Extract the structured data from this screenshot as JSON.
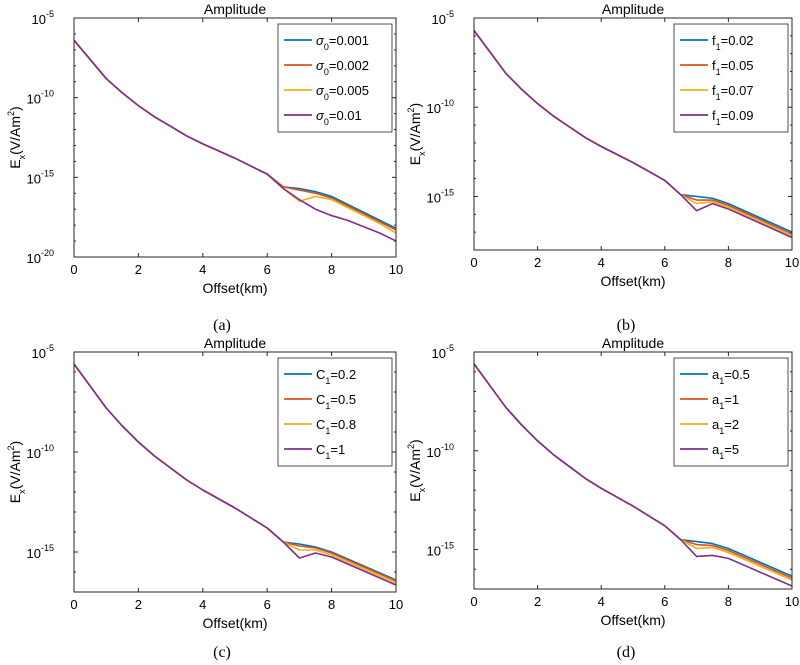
{
  "chart_data": [
    {
      "type": "line",
      "title": "Amplitude",
      "xlabel": "Offset(km)",
      "ylabel": {
        "base": "E",
        "sub": "x",
        "unit": "(V/Am",
        "unit_sup": "2",
        "unit_close": ")"
      },
      "yscale": "log",
      "xlim": [
        0,
        10
      ],
      "ylim_exp": [
        -20,
        -5
      ],
      "x_ticks": [
        0,
        2,
        4,
        6,
        8,
        10
      ],
      "y_ticks": [
        {
          "base": "10",
          "exp": "-20",
          "value": -20
        },
        {
          "base": "10",
          "exp": "-15",
          "value": -15
        },
        {
          "base": "10",
          "exp": "-10",
          "value": -10
        },
        {
          "base": "10",
          "exp": "-5",
          "value": -5
        }
      ],
      "caption": "(a)",
      "legend": {
        "position": "top-right"
      },
      "x": [
        0,
        0.5,
        1,
        1.5,
        2,
        2.5,
        3,
        3.5,
        4,
        4.5,
        5,
        5.5,
        6,
        6.5,
        7,
        7.5,
        8,
        8.5,
        9,
        9.5,
        10
      ],
      "series": [
        {
          "name": {
            "sym": "σ",
            "sub": "0",
            "val": "=0.001"
          },
          "color": "#0072BD",
          "values": [
            -6.4,
            -7.6,
            -8.8,
            -9.7,
            -10.5,
            -11.2,
            -11.8,
            -12.4,
            -12.9,
            -13.35,
            -13.8,
            -14.3,
            -14.8,
            -15.6,
            -15.7,
            -15.9,
            -16.2,
            -16.7,
            -17.2,
            -17.7,
            -18.2
          ]
        },
        {
          "name": {
            "sym": "σ",
            "sub": "0",
            "val": "=0.002"
          },
          "color": "#D95319",
          "values": [
            -6.4,
            -7.6,
            -8.8,
            -9.7,
            -10.5,
            -11.2,
            -11.8,
            -12.4,
            -12.9,
            -13.35,
            -13.8,
            -14.3,
            -14.8,
            -15.6,
            -15.8,
            -16.0,
            -16.3,
            -16.8,
            -17.3,
            -17.8,
            -18.3
          ]
        },
        {
          "name": {
            "sym": "σ",
            "sub": "0",
            "val": "=0.005"
          },
          "color": "#EDB120",
          "values": [
            -6.4,
            -7.6,
            -8.8,
            -9.7,
            -10.5,
            -11.2,
            -11.8,
            -12.4,
            -12.9,
            -13.35,
            -13.8,
            -14.3,
            -14.8,
            -15.7,
            -16.5,
            -16.2,
            -16.4,
            -16.9,
            -17.4,
            -17.9,
            -18.5
          ]
        },
        {
          "name": {
            "sym": "σ",
            "sub": "0",
            "val": "=0.01"
          },
          "color": "#7E2F8E",
          "values": [
            -6.4,
            -7.6,
            -8.8,
            -9.7,
            -10.5,
            -11.2,
            -11.8,
            -12.4,
            -12.9,
            -13.35,
            -13.8,
            -14.3,
            -14.8,
            -15.7,
            -16.4,
            -17.0,
            -17.4,
            -17.7,
            -18.1,
            -18.5,
            -19.0
          ]
        }
      ]
    },
    {
      "type": "line",
      "title": "Amplitude",
      "xlabel": "Offset(km)",
      "ylabel": {
        "base": "E",
        "sub": "x",
        "unit": "(V/Am",
        "unit_sup": "2",
        "unit_close": ")"
      },
      "yscale": "log",
      "xlim": [
        0,
        10
      ],
      "ylim_exp": [
        -18,
        -5
      ],
      "x_ticks": [
        0,
        2,
        4,
        6,
        8,
        10
      ],
      "y_ticks": [
        {
          "base": "10",
          "exp": "-15",
          "value": -15
        },
        {
          "base": "10",
          "exp": "-10",
          "value": -10
        },
        {
          "base": "10",
          "exp": "-5",
          "value": -5
        }
      ],
      "caption": "(b)",
      "legend": {
        "position": "top-right"
      },
      "x": [
        0,
        0.5,
        1,
        1.5,
        2,
        2.5,
        3,
        3.5,
        4,
        4.5,
        5,
        5.5,
        6,
        6.5,
        7,
        7.5,
        8,
        8.5,
        9,
        9.5,
        10
      ],
      "series": [
        {
          "name": {
            "sym": "f",
            "sub": "1",
            "val": "=0.02"
          },
          "color": "#0072BD",
          "values": [
            -5.7,
            -6.9,
            -8.1,
            -9.0,
            -9.8,
            -10.5,
            -11.1,
            -11.7,
            -12.2,
            -12.65,
            -13.1,
            -13.6,
            -14.1,
            -14.9,
            -15.0,
            -15.1,
            -15.4,
            -15.8,
            -16.2,
            -16.6,
            -17.0
          ]
        },
        {
          "name": {
            "sym": "f",
            "sub": "1",
            "val": "=0.05"
          },
          "color": "#D95319",
          "values": [
            -5.7,
            -6.9,
            -8.1,
            -9.0,
            -9.8,
            -10.5,
            -11.1,
            -11.7,
            -12.2,
            -12.65,
            -13.1,
            -13.6,
            -14.1,
            -14.9,
            -15.2,
            -15.2,
            -15.5,
            -15.9,
            -16.3,
            -16.7,
            -17.1
          ]
        },
        {
          "name": {
            "sym": "f",
            "sub": "1",
            "val": "=0.07"
          },
          "color": "#EDB120",
          "values": [
            -5.7,
            -6.9,
            -8.1,
            -9.0,
            -9.8,
            -10.5,
            -11.1,
            -11.7,
            -12.2,
            -12.65,
            -13.1,
            -13.6,
            -14.1,
            -14.9,
            -15.4,
            -15.3,
            -15.6,
            -16.0,
            -16.4,
            -16.8,
            -17.2
          ]
        },
        {
          "name": {
            "sym": "f",
            "sub": "1",
            "val": "=0.09"
          },
          "color": "#7E2F8E",
          "values": [
            -5.7,
            -6.9,
            -8.1,
            -9.0,
            -9.8,
            -10.5,
            -11.1,
            -11.7,
            -12.2,
            -12.65,
            -13.1,
            -13.6,
            -14.1,
            -14.9,
            -15.8,
            -15.4,
            -15.7,
            -16.1,
            -16.5,
            -16.9,
            -17.3
          ]
        }
      ]
    },
    {
      "type": "line",
      "title": "Amplitude",
      "xlabel": "Offset(km)",
      "ylabel": {
        "base": "E",
        "sub": "x",
        "unit": "(V/Am",
        "unit_sup": "2",
        "unit_close": ")"
      },
      "yscale": "log",
      "xlim": [
        0,
        10
      ],
      "ylim_exp": [
        -17,
        -5
      ],
      "x_ticks": [
        0,
        2,
        4,
        6,
        8,
        10
      ],
      "y_ticks": [
        {
          "base": "10",
          "exp": "-15",
          "value": -15
        },
        {
          "base": "10",
          "exp": "-10",
          "value": -10
        },
        {
          "base": "10",
          "exp": "-5",
          "value": -5
        }
      ],
      "caption": "(c)",
      "legend": {
        "position": "top-right"
      },
      "x": [
        0,
        0.5,
        1,
        1.5,
        2,
        2.5,
        3,
        3.5,
        4,
        4.5,
        5,
        5.5,
        6,
        6.5,
        7,
        7.5,
        8,
        8.5,
        9,
        9.5,
        10
      ],
      "series": [
        {
          "name": {
            "sym": "C",
            "sub": "1",
            "val": "=0.2"
          },
          "color": "#0072BD",
          "values": [
            -5.6,
            -6.7,
            -7.8,
            -8.7,
            -9.5,
            -10.2,
            -10.8,
            -11.4,
            -11.9,
            -12.35,
            -12.8,
            -13.3,
            -13.8,
            -14.5,
            -14.6,
            -14.75,
            -15.0,
            -15.35,
            -15.7,
            -16.05,
            -16.4
          ]
        },
        {
          "name": {
            "sym": "C",
            "sub": "1",
            "val": "=0.5"
          },
          "color": "#D95319",
          "values": [
            -5.6,
            -6.7,
            -7.8,
            -8.7,
            -9.5,
            -10.2,
            -10.8,
            -11.4,
            -11.9,
            -12.35,
            -12.8,
            -13.3,
            -13.8,
            -14.5,
            -14.7,
            -14.8,
            -15.05,
            -15.4,
            -15.75,
            -16.1,
            -16.45
          ]
        },
        {
          "name": {
            "sym": "C",
            "sub": "1",
            "val": "=0.8"
          },
          "color": "#EDB120",
          "values": [
            -5.6,
            -6.7,
            -7.8,
            -8.7,
            -9.5,
            -10.2,
            -10.8,
            -11.4,
            -11.9,
            -12.35,
            -12.8,
            -13.3,
            -13.8,
            -14.5,
            -14.9,
            -14.9,
            -15.15,
            -15.5,
            -15.85,
            -16.2,
            -16.55
          ]
        },
        {
          "name": {
            "sym": "C",
            "sub": "1",
            "val": "=1"
          },
          "color": "#7E2F8E",
          "values": [
            -5.6,
            -6.7,
            -7.8,
            -8.7,
            -9.5,
            -10.2,
            -10.8,
            -11.4,
            -11.9,
            -12.35,
            -12.8,
            -13.3,
            -13.8,
            -14.5,
            -15.3,
            -15.05,
            -15.25,
            -15.6,
            -15.95,
            -16.3,
            -16.65
          ]
        }
      ]
    },
    {
      "type": "line",
      "title": "Amplitude",
      "xlabel": "Offset(km)",
      "ylabel": {
        "base": "E",
        "sub": "x",
        "unit": "(V/Am",
        "unit_sup": "2",
        "unit_close": ")"
      },
      "yscale": "log",
      "xlim": [
        0,
        10
      ],
      "ylim_exp": [
        -17,
        -5
      ],
      "x_ticks": [
        0,
        2,
        4,
        6,
        8,
        10
      ],
      "y_ticks": [
        {
          "base": "10",
          "exp": "-15",
          "value": -15
        },
        {
          "base": "10",
          "exp": "-10",
          "value": -10
        },
        {
          "base": "10",
          "exp": "-5",
          "value": -5
        }
      ],
      "caption": "(d)",
      "legend": {
        "position": "top-right"
      },
      "x": [
        0,
        0.5,
        1,
        1.5,
        2,
        2.5,
        3,
        3.5,
        4,
        4.5,
        5,
        5.5,
        6,
        6.5,
        7,
        7.5,
        8,
        8.5,
        9,
        9.5,
        10
      ],
      "series": [
        {
          "name": {
            "sym": "a",
            "sub": "1",
            "val": "=0.5"
          },
          "color": "#0072BD",
          "values": [
            -5.6,
            -6.7,
            -7.8,
            -8.7,
            -9.5,
            -10.2,
            -10.8,
            -11.4,
            -11.9,
            -12.35,
            -12.8,
            -13.3,
            -13.8,
            -14.5,
            -14.6,
            -14.7,
            -14.95,
            -15.3,
            -15.65,
            -16.0,
            -16.35
          ]
        },
        {
          "name": {
            "sym": "a",
            "sub": "1",
            "val": "=1"
          },
          "color": "#D95319",
          "values": [
            -5.6,
            -6.7,
            -7.8,
            -8.7,
            -9.5,
            -10.2,
            -10.8,
            -11.4,
            -11.9,
            -12.35,
            -12.8,
            -13.3,
            -13.8,
            -14.5,
            -14.75,
            -14.8,
            -15.05,
            -15.4,
            -15.75,
            -16.1,
            -16.45
          ]
        },
        {
          "name": {
            "sym": "a",
            "sub": "1",
            "val": "=2"
          },
          "color": "#EDB120",
          "values": [
            -5.6,
            -6.7,
            -7.8,
            -8.7,
            -9.5,
            -10.2,
            -10.8,
            -11.4,
            -11.9,
            -12.35,
            -12.8,
            -13.3,
            -13.8,
            -14.5,
            -14.95,
            -14.9,
            -15.15,
            -15.5,
            -15.85,
            -16.2,
            -16.55
          ]
        },
        {
          "name": {
            "sym": "a",
            "sub": "1",
            "val": "=5"
          },
          "color": "#7E2F8E",
          "values": [
            -5.6,
            -6.7,
            -7.8,
            -8.7,
            -9.5,
            -10.2,
            -10.8,
            -11.4,
            -11.9,
            -12.35,
            -12.8,
            -13.3,
            -13.8,
            -14.5,
            -15.35,
            -15.3,
            -15.45,
            -15.8,
            -16.15,
            -16.5,
            -16.85
          ]
        }
      ]
    }
  ]
}
